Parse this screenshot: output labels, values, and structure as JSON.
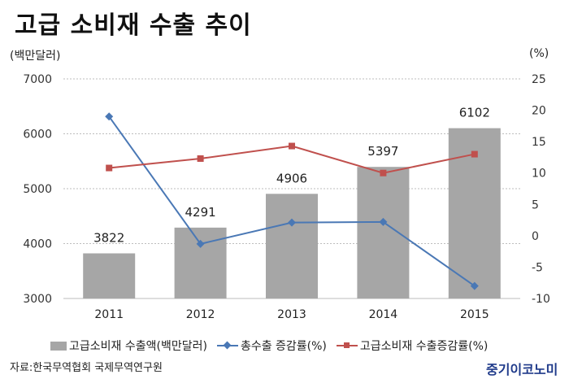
{
  "title": "고급 소비재 수출 추이",
  "source": "자료:한국무역협회 국제무역연구원",
  "brand": "중기이코노미",
  "colors": {
    "bar": "#a6a6a6",
    "blue_line": "#4a78b5",
    "red_line": "#c0504d",
    "grid": "#bdbdbd"
  },
  "chart_data": {
    "type": "bar",
    "categories": [
      "2011",
      "2012",
      "2013",
      "2014",
      "2015"
    ],
    "ylabel_left": "(백만달러)",
    "ylabel_right": "(%)",
    "ylim_left": [
      3000,
      7000
    ],
    "yticks_left": [
      3000,
      4000,
      5000,
      6000,
      7000
    ],
    "ylim_right": [
      -10,
      25
    ],
    "yticks_right": [
      -10,
      -5,
      0,
      5,
      10,
      15,
      20,
      25
    ],
    "grid": true,
    "legend_position": "bottom",
    "series": [
      {
        "name": "고급소비재 수출액(백만달러)",
        "type": "bar",
        "axis": "left",
        "values": [
          3822,
          4291,
          4906,
          5397,
          6102
        ]
      },
      {
        "name": "총수출 증감률(%)",
        "type": "line",
        "axis": "right",
        "marker": "diamond",
        "values": [
          19.0,
          -1.3,
          2.1,
          2.2,
          -8.0
        ]
      },
      {
        "name": "고급소비재 수출증감률(%)",
        "type": "line",
        "axis": "right",
        "marker": "square",
        "values": [
          10.8,
          12.3,
          14.3,
          10.0,
          13.0
        ]
      }
    ]
  }
}
